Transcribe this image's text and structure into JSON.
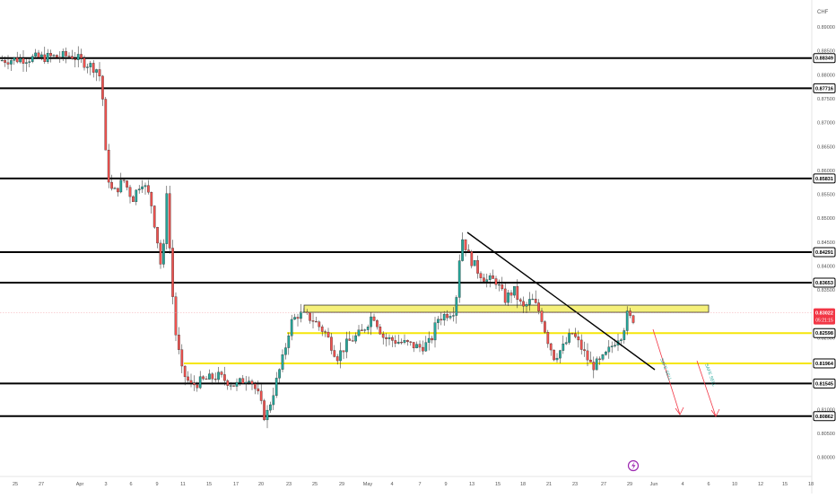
{
  "chart_data": {
    "type": "candlestick",
    "currency_label": "CHF",
    "price_range": [
      0.8,
      0.89
    ],
    "y_ticks": [
      {
        "label": "0.89000",
        "value": 0.89
      },
      {
        "label": "0.88500",
        "value": 0.885
      },
      {
        "label": "0.88000",
        "value": 0.88
      },
      {
        "label": "0.87500",
        "value": 0.875
      },
      {
        "label": "0.87000",
        "value": 0.87
      },
      {
        "label": "0.86500",
        "value": 0.865
      },
      {
        "label": "0.86000",
        "value": 0.86
      },
      {
        "label": "0.85500",
        "value": 0.855
      },
      {
        "label": "0.85000",
        "value": 0.85
      },
      {
        "label": "0.84500",
        "value": 0.845
      },
      {
        "label": "0.84000",
        "value": 0.84
      },
      {
        "label": "0.83500",
        "value": 0.835
      },
      {
        "label": "0.83000",
        "value": 0.83
      },
      {
        "label": "0.82500",
        "value": 0.825
      },
      {
        "label": "0.82000",
        "value": 0.82
      },
      {
        "label": "0.81500",
        "value": 0.815
      },
      {
        "label": "0.81000",
        "value": 0.81
      },
      {
        "label": "0.80500",
        "value": 0.805
      },
      {
        "label": "0.80000",
        "value": 0.8
      }
    ],
    "x_ticks": [
      "25",
      "27",
      "Apr",
      "3",
      "6",
      "9",
      "11",
      "15",
      "17",
      "20",
      "23",
      "25",
      "29",
      "May",
      "4",
      "7",
      "9",
      "13",
      "15",
      "18",
      "21",
      "23",
      "27",
      "29",
      "Jun",
      "4",
      "6",
      "10",
      "12",
      "15",
      "18"
    ],
    "levels": [
      {
        "label": "0.88349",
        "value": 0.88349,
        "color": "#000000"
      },
      {
        "label": "0.87716",
        "value": 0.87716,
        "color": "#000000"
      },
      {
        "label": "0.85831",
        "value": 0.85831,
        "color": "#000000"
      },
      {
        "label": "0.84291",
        "value": 0.84291,
        "color": "#000000"
      },
      {
        "label": "0.83653",
        "value": 0.83653,
        "color": "#000000"
      },
      {
        "label": "0.82598",
        "value": 0.82598,
        "color": "#f5e60a"
      },
      {
        "label": "0.81964",
        "value": 0.81964,
        "color": "#f5e60a"
      },
      {
        "label": "0.81545",
        "value": 0.81545,
        "color": "#000000"
      },
      {
        "label": "0.80862",
        "value": 0.80862,
        "color": "#000000"
      }
    ],
    "current_price": {
      "label": "0.83022",
      "countdown": "05:21:15",
      "value": 0.83022,
      "color": "#f23645"
    },
    "zone": {
      "low": 0.83033,
      "high": 0.83183,
      "color": "#f5f07a"
    },
    "trendline": {
      "start": [
        "May 10",
        0.8474
      ],
      "end": [
        "Jun 1",
        0.8197
      ]
    },
    "annotations": [
      {
        "text": "SAFE   SELL",
        "color": "#26a69a"
      },
      {
        "text": "SAFE   SELL",
        "color": "#26a69a"
      }
    ],
    "colors": {
      "up": "#26a69a",
      "down": "#ef5350",
      "outline": "#1e1e1e"
    }
  }
}
